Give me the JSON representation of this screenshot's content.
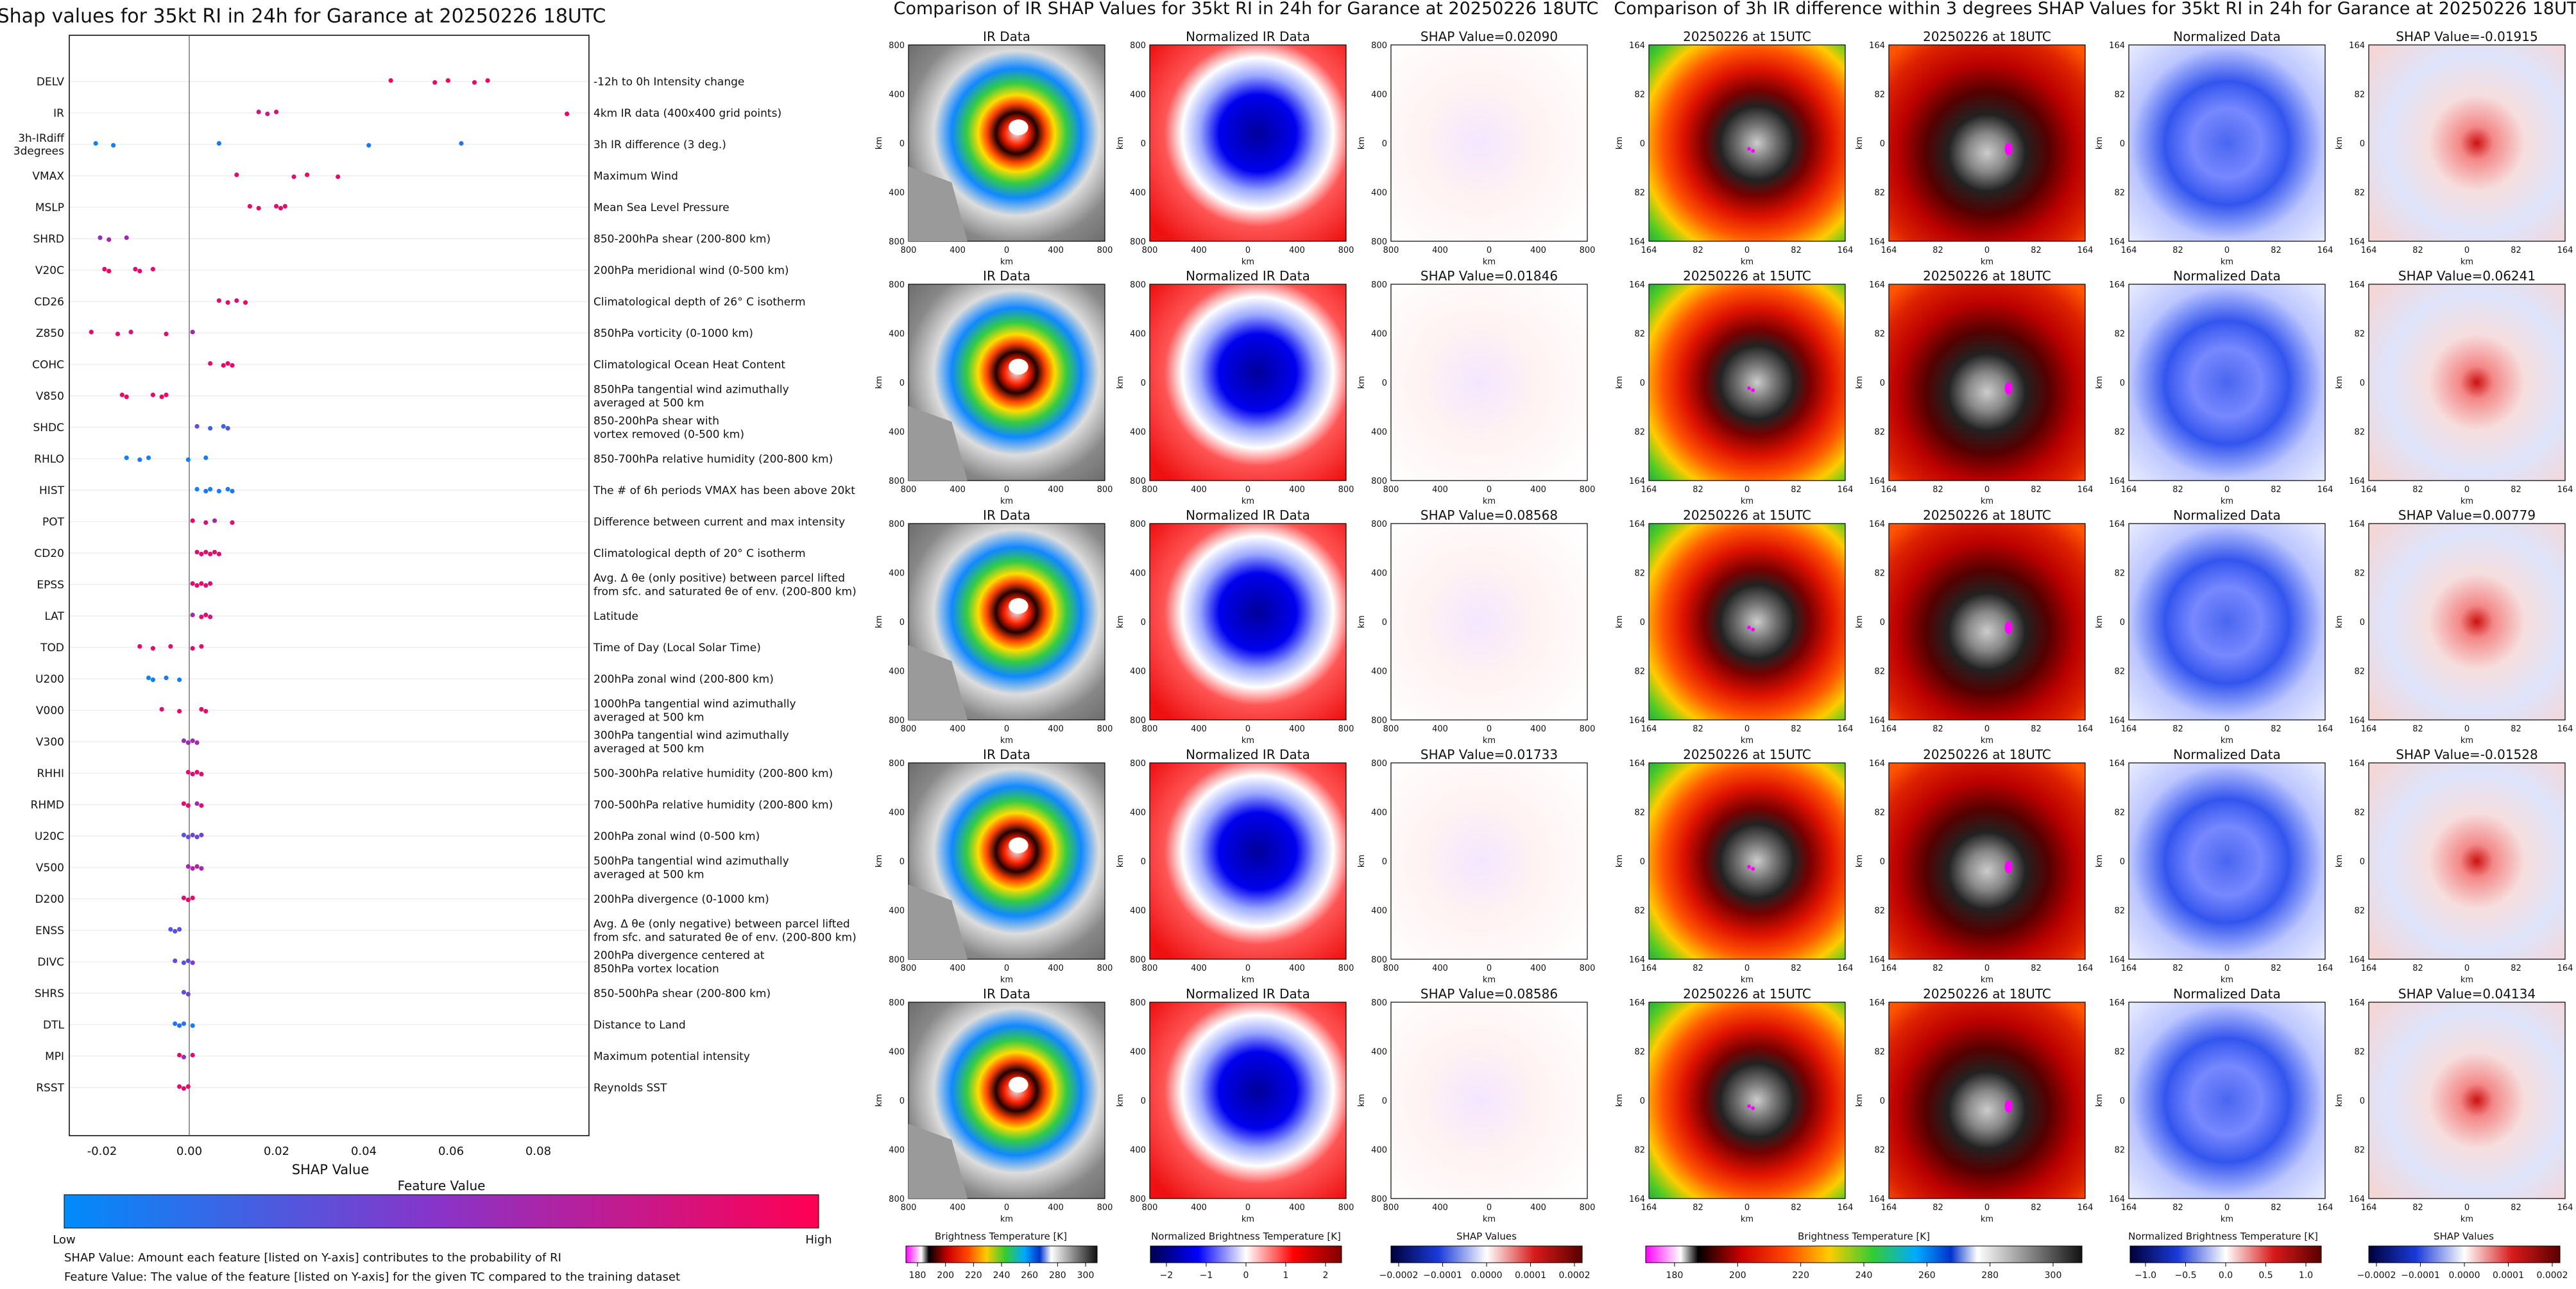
{
  "shap_panel": {
    "title": "Shap values for 35kt RI in 24h for Garance at 20250226 18UTC",
    "xlabel": "SHAP Value",
    "x_ticks": [
      "-0.02",
      "0.00",
      "0.02",
      "0.04",
      "0.06",
      "0.08"
    ],
    "colorbar_title": "Feature Value",
    "colorbar_low": "Low",
    "colorbar_high": "High",
    "note1": "SHAP Value: Amount each feature [listed on Y-axis] contributes to the probability of RI",
    "note2": "Feature Value: The value of the feature [listed on Y-axis] for the given TC compared to the training dataset"
  },
  "chart_data": {
    "type": "scatter",
    "title": "Shap values for 35kt RI in 24h for Garance at 20250226 18UTC",
    "xlabel": "SHAP Value",
    "xlim": [
      -0.026,
      0.092
    ],
    "features": [
      {
        "code": "DELV",
        "desc": [
          "-12h to 0h Intensity change"
        ],
        "points": [
          0.047,
          0.057,
          0.06,
          0.066,
          0.069
        ],
        "c": [
          0.95,
          0.9,
          1,
          0.92,
          0.96
        ]
      },
      {
        "code": "IR",
        "desc": [
          "4km IR data (400x400 grid points)"
        ],
        "points": [
          0.017,
          0.019,
          0.021,
          0.087
        ],
        "c": [
          0.8,
          0.75,
          0.85,
          0.95
        ]
      },
      {
        "code": "3h-IRdiff 3degrees",
        "desc": [
          "3h IR difference (3 deg.)"
        ],
        "points": [
          -0.02,
          -0.016,
          0.008,
          0.042,
          0.063
        ],
        "c": [
          0.05,
          0.08,
          0.1,
          0.1,
          0.15
        ]
      },
      {
        "code": "VMAX",
        "desc": [
          "Maximum Wind"
        ],
        "points": [
          0.012,
          0.025,
          0.028,
          0.035
        ],
        "c": [
          0.9,
          0.85,
          0.95,
          0.88
        ]
      },
      {
        "code": "MSLP",
        "desc": [
          "Mean Sea Level Pressure"
        ],
        "points": [
          0.015,
          0.017,
          0.021,
          0.022,
          0.023
        ],
        "c": [
          0.9,
          0.92,
          0.88,
          0.9,
          0.86
        ]
      },
      {
        "code": "SHRD",
        "desc": [
          "850-200hPa shear (200-800 km)"
        ],
        "points": [
          -0.019,
          -0.017,
          -0.013
        ],
        "c": [
          0.55,
          0.65,
          0.6
        ]
      },
      {
        "code": "V20C",
        "desc": [
          "200hPa meridional wind (0-500 km)"
        ],
        "points": [
          -0.018,
          -0.017,
          -0.011,
          -0.01,
          -0.007
        ],
        "c": [
          0.9,
          0.95,
          0.85,
          0.9,
          0.88
        ]
      },
      {
        "code": "CD26",
        "desc": [
          "Climatological depth of 26° C isotherm"
        ],
        "points": [
          0.008,
          0.01,
          0.012,
          0.014
        ],
        "c": [
          0.85,
          0.9,
          0.88,
          0.92
        ]
      },
      {
        "code": "Z850",
        "desc": [
          "850hPa vorticity (0-1000 km)"
        ],
        "points": [
          -0.021,
          -0.015,
          -0.012,
          -0.004,
          0.002
        ],
        "c": [
          0.9,
          0.85,
          0.8,
          0.88,
          0.6
        ]
      },
      {
        "code": "COHC",
        "desc": [
          "Climatological Ocean Heat Content"
        ],
        "points": [
          0.006,
          0.009,
          0.01,
          0.011
        ],
        "c": [
          0.85,
          0.9,
          0.88,
          0.92
        ]
      },
      {
        "code": "V850",
        "desc": [
          "850hPa tangential wind azimuthally",
          "averaged at 500 km"
        ],
        "points": [
          -0.014,
          -0.013,
          -0.007,
          -0.005,
          -0.004
        ],
        "c": [
          0.9,
          0.95,
          0.88,
          0.92,
          0.9
        ]
      },
      {
        "code": "SHDC",
        "desc": [
          "850-200hPa shear with",
          "vortex removed (0-500 km)"
        ],
        "points": [
          0.003,
          0.006,
          0.009,
          0.01
        ],
        "c": [
          0.35,
          0.25,
          0.2,
          0.3
        ]
      },
      {
        "code": "RHLO",
        "desc": [
          "850-700hPa relative humidity (200-800 km)"
        ],
        "points": [
          -0.013,
          -0.01,
          -0.008,
          0.001,
          0.005
        ],
        "c": [
          0.05,
          0.1,
          0.08,
          0.05,
          0.1
        ]
      },
      {
        "code": "HIST",
        "desc": [
          "The # of 6h periods VMAX has been above 20kt"
        ],
        "points": [
          0.003,
          0.005,
          0.006,
          0.008,
          0.01,
          0.011
        ],
        "c": [
          0.05,
          0.1,
          0.08,
          0.05,
          0.1,
          0.12
        ]
      },
      {
        "code": "POT",
        "desc": [
          "Difference between current and max intensity"
        ],
        "points": [
          0.002,
          0.005,
          0.007,
          0.011
        ],
        "c": [
          0.9,
          0.85,
          0.6,
          0.88
        ]
      },
      {
        "code": "CD20",
        "desc": [
          "Climatological depth of 20° C isotherm"
        ],
        "points": [
          0.003,
          0.004,
          0.005,
          0.006,
          0.007,
          0.008
        ],
        "c": [
          0.85,
          0.88,
          0.9,
          0.92,
          0.88,
          0.9
        ]
      },
      {
        "code": "EPSS",
        "desc": [
          "Avg. Δ θe (only positive) between parcel lifted",
          "from sfc. and saturated θe of env. (200-800 km)"
        ],
        "points": [
          0.002,
          0.003,
          0.004,
          0.005,
          0.006
        ],
        "c": [
          0.85,
          0.88,
          0.9,
          0.82,
          0.86
        ]
      },
      {
        "code": "LAT",
        "desc": [
          "Latitude"
        ],
        "points": [
          0.002,
          0.004,
          0.005,
          0.006
        ],
        "c": [
          0.6,
          0.85,
          0.88,
          0.8
        ]
      },
      {
        "code": "TOD",
        "desc": [
          "Time of Day (Local Solar Time)"
        ],
        "points": [
          -0.01,
          -0.007,
          -0.003,
          0.002,
          0.004
        ],
        "c": [
          0.88,
          0.9,
          0.85,
          0.9,
          0.86
        ]
      },
      {
        "code": "U200",
        "desc": [
          "200hPa zonal wind (200-800 km)"
        ],
        "points": [
          -0.008,
          -0.007,
          -0.004,
          -0.001
        ],
        "c": [
          0.05,
          0.08,
          0.1,
          0.06
        ]
      },
      {
        "code": "V000",
        "desc": [
          "1000hPa tangential wind azimuthally",
          "averaged at 500 km"
        ],
        "points": [
          -0.005,
          -0.001,
          0.004,
          0.005
        ],
        "c": [
          0.85,
          0.9,
          0.88,
          0.86
        ]
      },
      {
        "code": "V300",
        "desc": [
          "300hPa tangential wind azimuthally",
          "averaged at 500 km"
        ],
        "points": [
          0.0,
          0.001,
          0.002,
          0.003
        ],
        "c": [
          0.55,
          0.6,
          0.65,
          0.58
        ]
      },
      {
        "code": "RHHI",
        "desc": [
          "500-300hPa relative humidity (200-800 km)"
        ],
        "points": [
          0.001,
          0.002,
          0.003,
          0.004
        ],
        "c": [
          0.85,
          0.88,
          0.9,
          0.86
        ]
      },
      {
        "code": "RHMD",
        "desc": [
          "700-500hPa relative humidity (200-800 km)"
        ],
        "points": [
          0.0,
          0.001,
          0.003,
          0.004
        ],
        "c": [
          0.88,
          0.9,
          0.6,
          0.86
        ]
      },
      {
        "code": "U20C",
        "desc": [
          "200hPa zonal wind (0-500 km)"
        ],
        "points": [
          0.0,
          0.001,
          0.002,
          0.003,
          0.004
        ],
        "c": [
          0.3,
          0.35,
          0.4,
          0.38,
          0.42
        ]
      },
      {
        "code": "V500",
        "desc": [
          "500hPa tangential wind azimuthally",
          "averaged at 500 km"
        ],
        "points": [
          0.001,
          0.002,
          0.003,
          0.004
        ],
        "c": [
          0.6,
          0.65,
          0.7,
          0.62
        ]
      },
      {
        "code": "D200",
        "desc": [
          "200hPa divergence (0-1000 km)"
        ],
        "points": [
          0.0,
          0.001,
          0.002
        ],
        "c": [
          0.85,
          0.9,
          0.88
        ]
      },
      {
        "code": "ENSS",
        "desc": [
          "Avg. Δ θe (only negative) between parcel lifted",
          "from sfc. and saturated θe of env. (200-800 km)"
        ],
        "points": [
          -0.003,
          -0.002,
          -0.001
        ],
        "c": [
          0.3,
          0.35,
          0.32
        ]
      },
      {
        "code": "DIVC",
        "desc": [
          "200hPa divergence centered at",
          "850hPa vortex location"
        ],
        "points": [
          -0.002,
          0.0,
          0.001,
          0.002
        ],
        "c": [
          0.4,
          0.3,
          0.35,
          0.45
        ]
      },
      {
        "code": "SHRS",
        "desc": [
          "850-500hPa shear (200-800 km)"
        ],
        "points": [
          0.0,
          0.001
        ],
        "c": [
          0.35,
          0.4
        ]
      },
      {
        "code": "DTL",
        "desc": [
          "Distance to Land"
        ],
        "points": [
          -0.002,
          -0.001,
          0.0,
          0.002
        ],
        "c": [
          0.1,
          0.15,
          0.12,
          0.08
        ]
      },
      {
        "code": "MPI",
        "desc": [
          "Maximum potential intensity"
        ],
        "points": [
          -0.001,
          0.0,
          0.002
        ],
        "c": [
          0.85,
          0.55,
          0.88
        ]
      },
      {
        "code": "RSST",
        "desc": [
          "Reynolds SST"
        ],
        "points": [
          -0.001,
          0.0,
          0.001
        ],
        "c": [
          0.9,
          0.88,
          0.92
        ]
      }
    ]
  },
  "ir_panel": {
    "title": "Comparison of IR SHAP Values for 35kt RI in 24h for Garance at 20250226 18UTC",
    "col_titles": [
      "IR Data",
      "Normalized IR Data"
    ],
    "shap_values": [
      "SHAP Value=0.02090",
      "SHAP Value=0.01846",
      "SHAP Value=0.08568",
      "SHAP Value=0.01733",
      "SHAP Value=0.08586"
    ],
    "axis_label": "km",
    "ticks": [
      "800",
      "400",
      "0",
      "400",
      "800"
    ],
    "cbar_labels": [
      "Brightness Temperature [K]",
      "Normalized Brightness Temperature [K]",
      "SHAP Values"
    ],
    "cbar1_ticks": [
      "180",
      "200",
      "220",
      "240",
      "260",
      "280",
      "300"
    ],
    "cbar2_ticks": [
      "−2",
      "−1",
      "0",
      "1",
      "2"
    ],
    "cbar3_ticks": [
      "−0.0002",
      "−0.0001",
      "0.0000",
      "0.0001",
      "0.0002"
    ]
  },
  "diff_panel": {
    "title": "Comparison of 3h IR difference within 3 degrees SHAP Values for 35kt RI in 24h for Garance at 20250226 18UTC",
    "col_titles": [
      "20250226 at 15UTC",
      "20250226 at 18UTC",
      "Normalized Data"
    ],
    "shap_values": [
      "SHAP Value=-0.01915",
      "SHAP Value=0.06241",
      "SHAP Value=0.00779",
      "SHAP Value=-0.01528",
      "SHAP Value=0.04134"
    ],
    "axis_label": "km",
    "ticks": [
      "164",
      "82",
      "0",
      "82",
      "164"
    ],
    "cbar_labels": [
      "Brightness Temperature [K]",
      "Normalized Brightness Temperature [K]",
      "SHAP Values"
    ],
    "cbar1_ticks": [
      "180",
      "200",
      "220",
      "240",
      "260",
      "280",
      "300"
    ],
    "cbar2_ticks": [
      "−1.0",
      "−0.5",
      "0.0",
      "0.5",
      "1.0"
    ],
    "cbar3_ticks": [
      "−0.0002",
      "−0.0001",
      "0.0000",
      "0.0001",
      "0.0002"
    ]
  }
}
